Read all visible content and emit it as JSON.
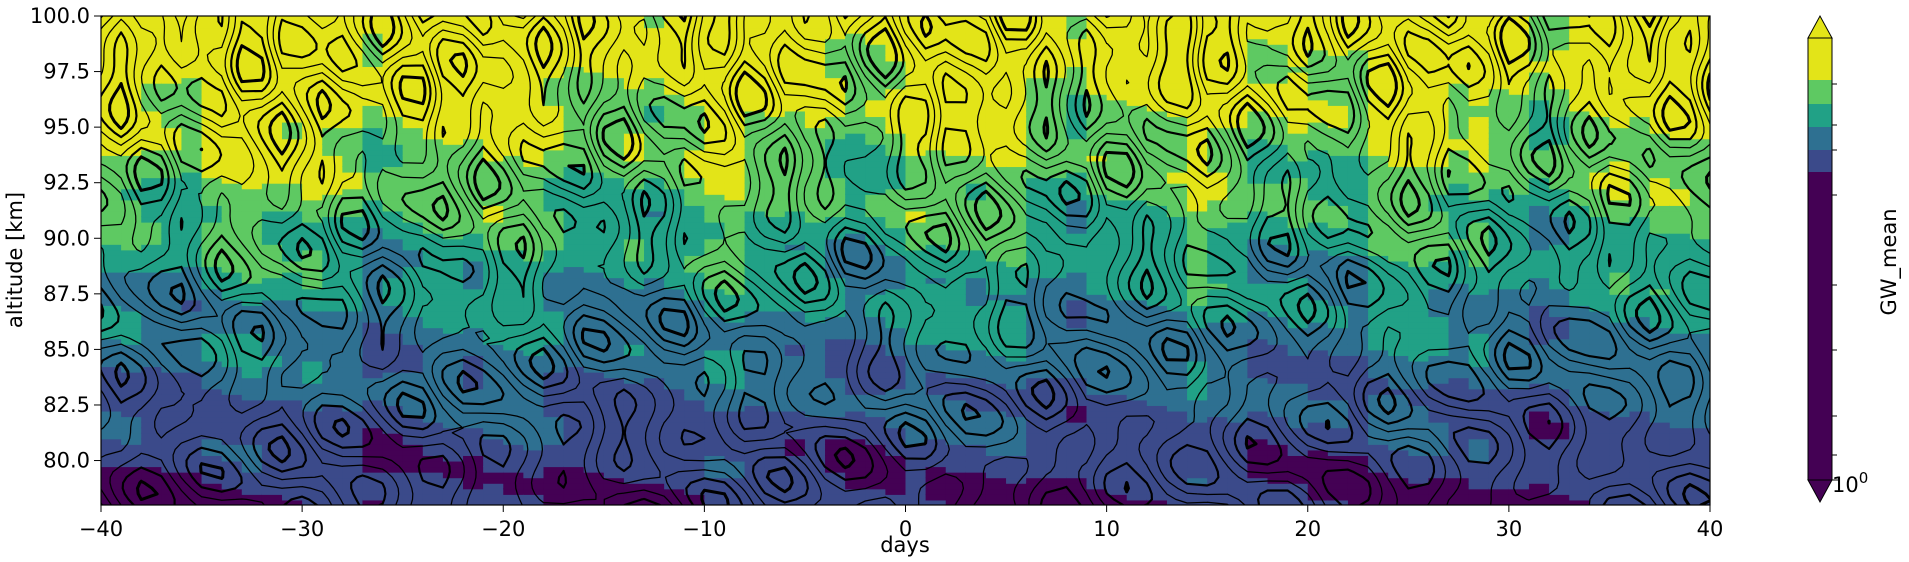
{
  "chart_data": {
    "type": "contour",
    "xlabel": "days",
    "ylabel": "altitude [km]",
    "colorbar_label": "GW_mean",
    "colorbar_tick_label": {
      "base": "10",
      "exponent": "0"
    },
    "xlim": [
      -40,
      40
    ],
    "ylim": [
      78,
      100
    ],
    "xticks": [
      -40,
      -30,
      -20,
      -10,
      0,
      10,
      20,
      30,
      40
    ],
    "xtick_labels": [
      "−40",
      "−30",
      "−20",
      "−10",
      "0",
      "10",
      "20",
      "30",
      "40"
    ],
    "yticks": [
      80.0,
      82.5,
      85.0,
      87.5,
      90.0,
      92.5,
      95.0,
      97.5,
      100.0
    ],
    "ytick_labels": [
      "80.0",
      "82.5",
      "85.0",
      "87.5",
      "90.0",
      "92.5",
      "95.0",
      "97.5",
      "100.0"
    ],
    "colormap": "viridis",
    "colorbar_extend": "both",
    "fill_levels": [
      {
        "level": 1,
        "color": "#440154"
      },
      {
        "level": 2,
        "color": "#3b4a8a"
      },
      {
        "level": 3,
        "color": "#2e7091"
      },
      {
        "level": 4,
        "color": "#21a186"
      },
      {
        "level": 5,
        "color": "#5ec962"
      },
      {
        "level": 6,
        "color": "#e3e418"
      }
    ],
    "line_color": "#000000"
  }
}
